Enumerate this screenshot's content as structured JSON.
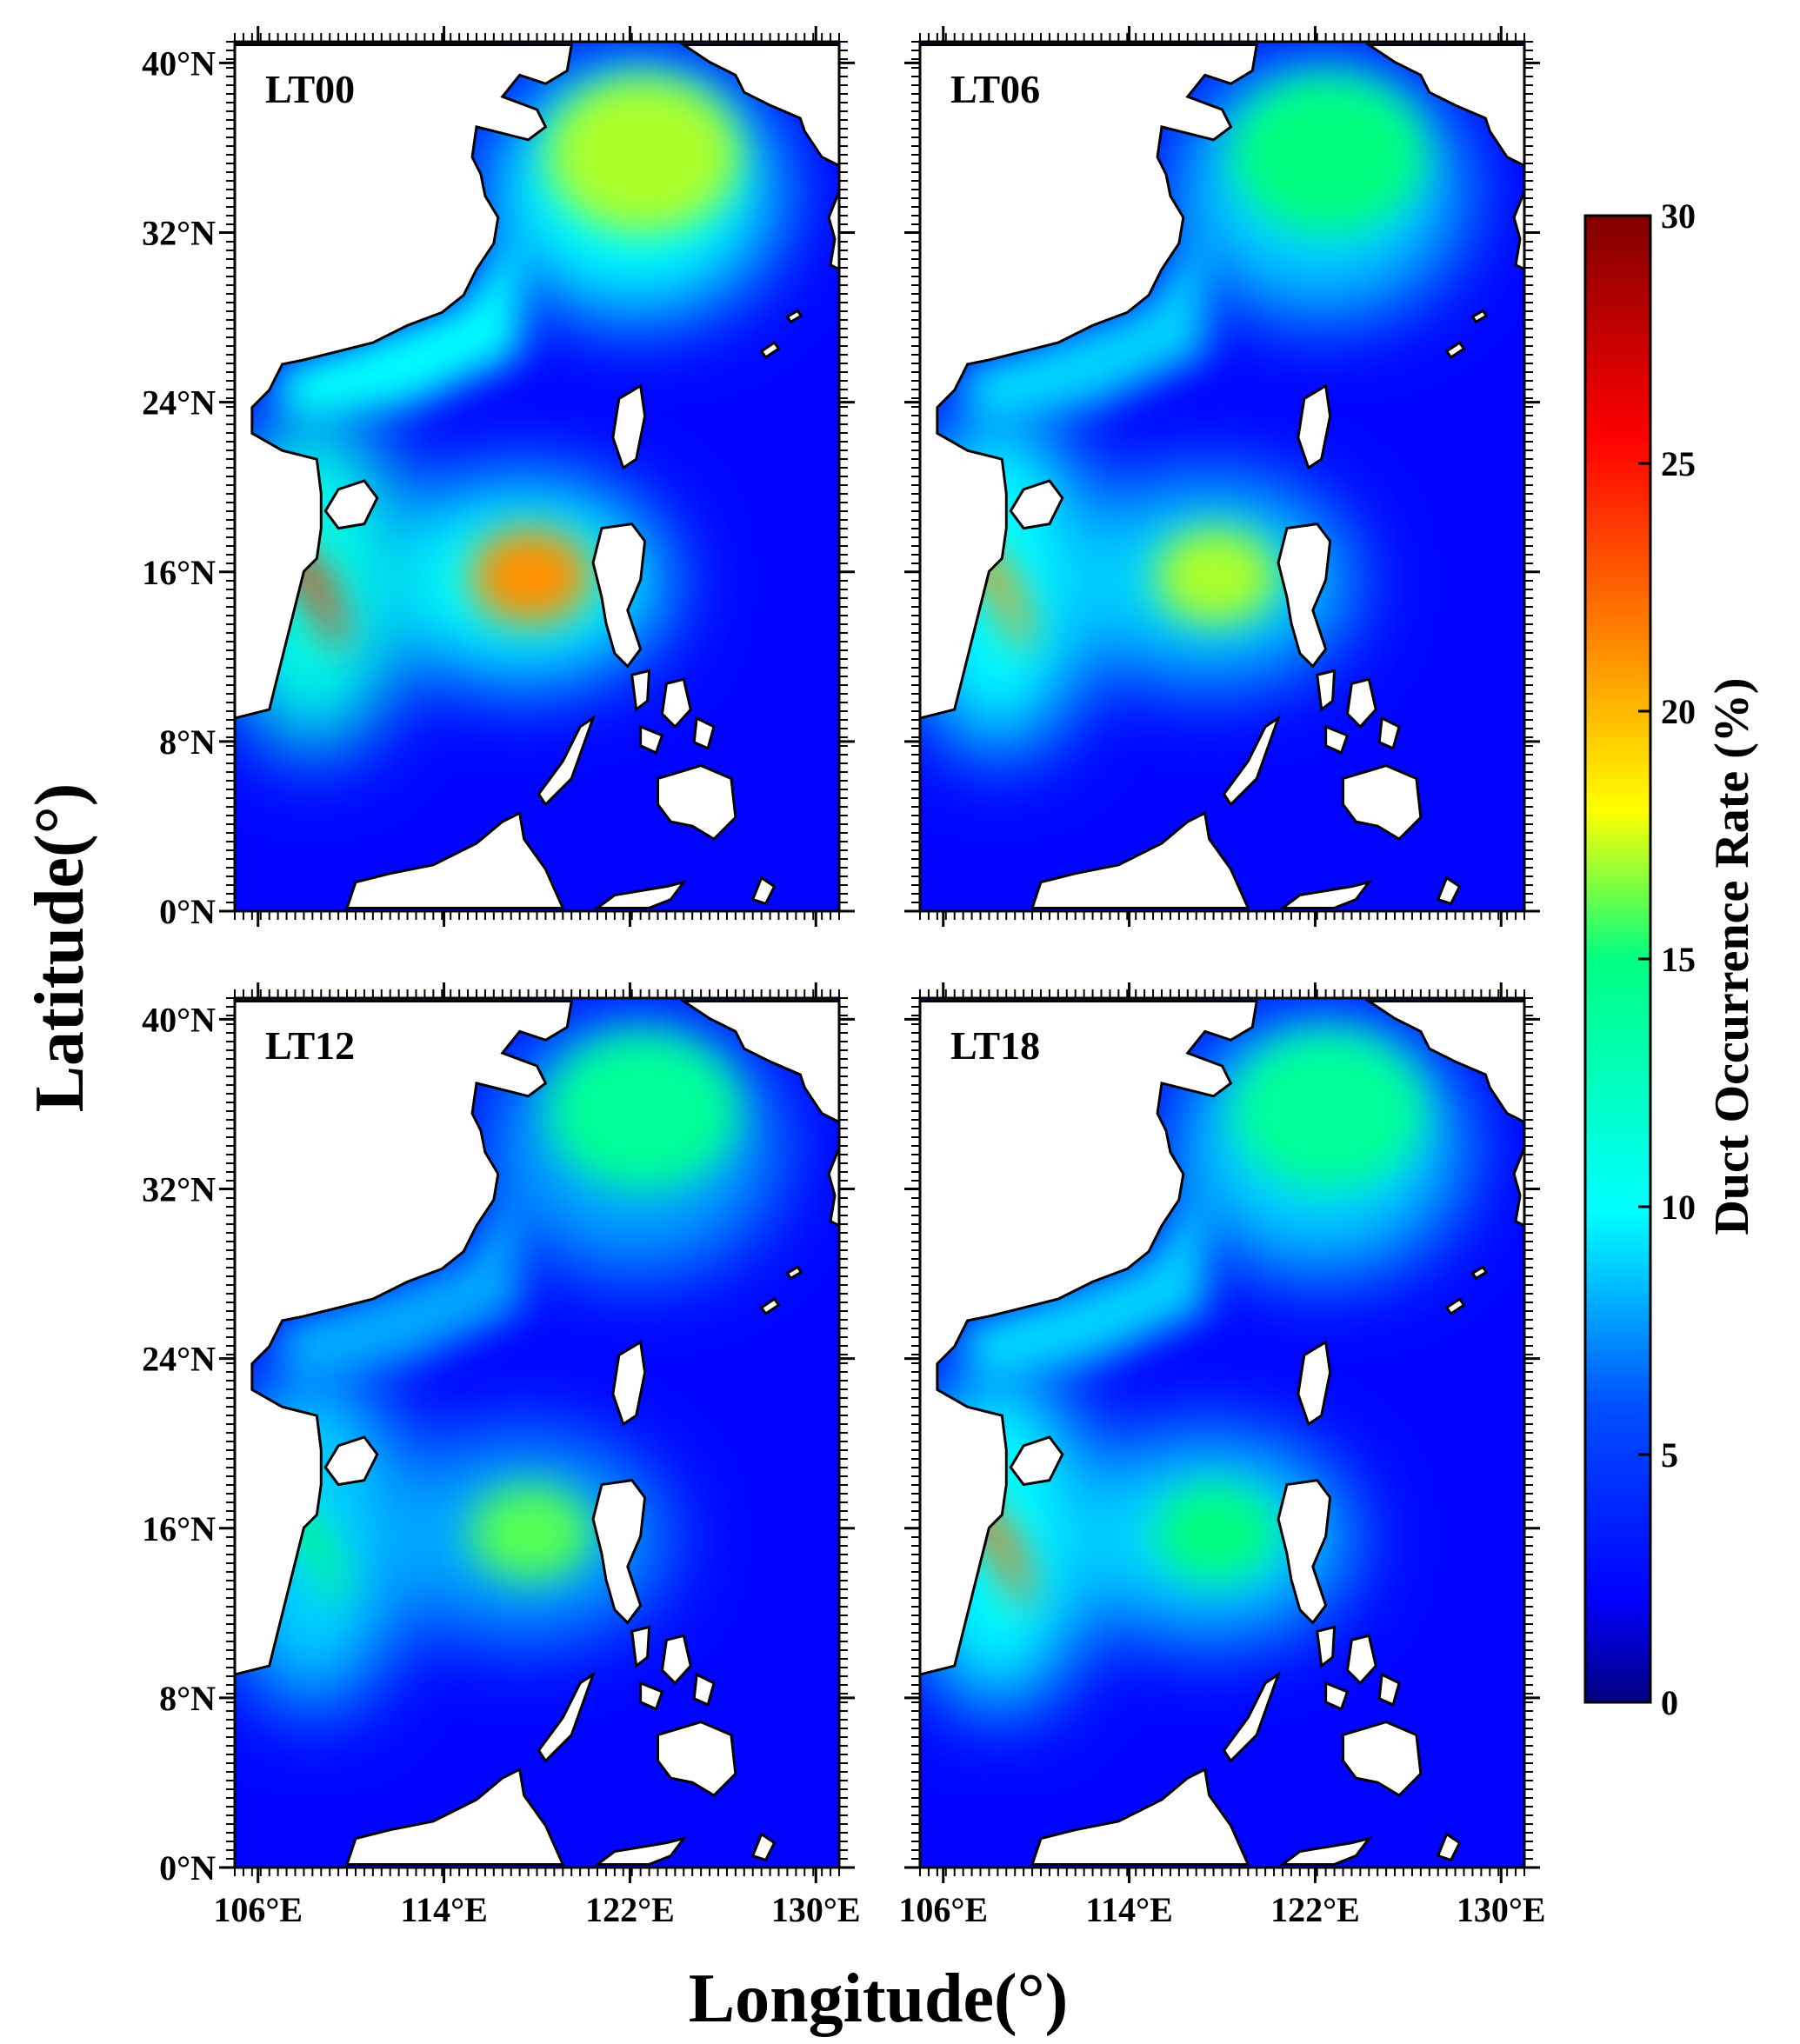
{
  "figure": {
    "x_axis_title": "Longitude(°)",
    "y_axis_title": "Latitude(°)",
    "longitude_ticks": [
      "106°E",
      "114°E",
      "122°E",
      "130°E"
    ],
    "latitude_ticks": [
      "40°N",
      "32°N",
      "24°N",
      "16°N",
      "8°N",
      "0°N"
    ]
  },
  "panels": [
    {
      "label": "LT00",
      "hotspots": {
        "gulf_of_tonkin_vietnam": 24,
        "south_china_sea_center": 21,
        "yellow_sea": 17,
        "coastal_china": 10
      }
    },
    {
      "label": "LT06",
      "hotspots": {
        "gulf_of_tonkin_vietnam": 21,
        "south_china_sea_center": 17,
        "yellow_sea": 15,
        "coastal_china": 9
      }
    },
    {
      "label": "LT12",
      "hotspots": {
        "gulf_of_tonkin_vietnam": 15,
        "south_china_sea_center": 16,
        "yellow_sea": 14,
        "coastal_china": 8
      }
    },
    {
      "label": "LT18",
      "hotspots": {
        "gulf_of_tonkin_vietnam": 22,
        "south_china_sea_center": 15,
        "yellow_sea": 14,
        "coastal_china": 9
      }
    }
  ],
  "colorbar": {
    "title": "Duct  Occurrence Rate (%)",
    "ticks": [
      "30",
      "25",
      "20",
      "15",
      "10",
      "5",
      "0"
    ],
    "range": [
      0,
      30
    ],
    "colors": [
      "#000080",
      "#0000ff",
      "#00ffff",
      "#00ff80",
      "#ffff00",
      "#ff8000",
      "#ff0000",
      "#800000"
    ]
  }
}
